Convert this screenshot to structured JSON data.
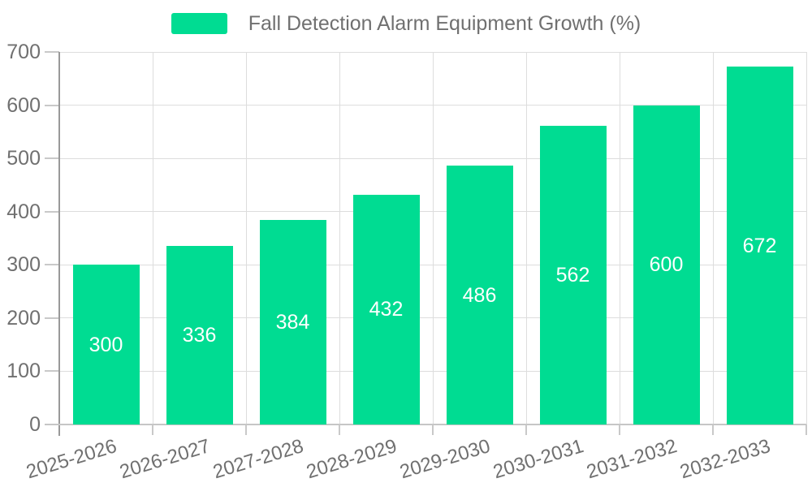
{
  "chart_data": {
    "type": "bar",
    "legend": [
      "Fall Detection Alarm Equipment Growth (%)"
    ],
    "categories": [
      "2025-2026",
      "2026-2027",
      "2027-2028",
      "2028-2029",
      "2029-2030",
      "2030-2031",
      "2031-2032",
      "2032-2033"
    ],
    "series": [
      {
        "name": "Fall Detection Alarm Equipment Growth (%)",
        "values": [
          300,
          336,
          384,
          432,
          486,
          562,
          600,
          672
        ]
      }
    ],
    "yticks": [
      0,
      100,
      200,
      300,
      400,
      500,
      600,
      700
    ],
    "ylim": [
      0,
      700
    ],
    "xlabel": "",
    "ylabel": "",
    "grid": true,
    "legend_position": "top-center",
    "bar_label_position": "inside-middle",
    "x_label_rotation_deg": -17,
    "colors": {
      "bar": "#00DC92",
      "bar_label": "#FFFFFF",
      "axis_label": "#707070",
      "legend_text": "#707070",
      "grid_line": "#DDDDDD",
      "y_axis_line": "#999999",
      "x_axis_line": "#C6C6C6",
      "tick": "#C9C9C9",
      "background": "#FFFFFF"
    }
  }
}
